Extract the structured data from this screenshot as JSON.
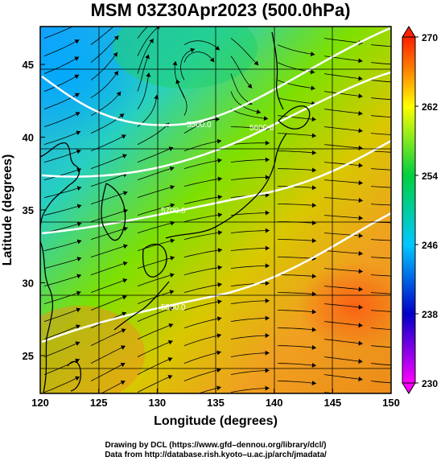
{
  "title": "MSM 03Z30Apr2023 (500.0hPa)",
  "x_axis": {
    "label": "Longitude (degrees)",
    "range": [
      120,
      150
    ],
    "ticks": [
      120,
      125,
      130,
      135,
      140,
      145,
      150
    ],
    "tick_labels": [
      "120",
      "125",
      "130",
      "135",
      "140",
      "145",
      "150"
    ]
  },
  "y_axis": {
    "label": "Latitude (degrees)",
    "range": [
      22.4,
      47.6
    ],
    "ticks": [
      25,
      30,
      35,
      40,
      45
    ],
    "tick_labels": [
      "25",
      "30",
      "35",
      "40",
      "45"
    ]
  },
  "colorbar": {
    "range": [
      230,
      270
    ],
    "ticks": [
      230,
      238,
      246,
      254,
      262,
      270
    ],
    "tick_labels": [
      "230",
      "238",
      "246",
      "254",
      "262",
      "270"
    ],
    "colors": [
      "#ff00ff",
      "#0000c8",
      "#00c8ff",
      "#00d040",
      "#ffff00",
      "#ff8800",
      "#ff2000"
    ]
  },
  "contours": {
    "labels": [
      "5500.0",
      "5600.0",
      "5700.0",
      "5800.0"
    ],
    "color": "#ffffff"
  },
  "credits": {
    "line1": "Drawing by DCL (https://www.gfd–dennou.org/library/dcl/)",
    "line2": "Data from http://database.rish.kyoto–u.ac.jp/arch/jmadata/"
  }
}
